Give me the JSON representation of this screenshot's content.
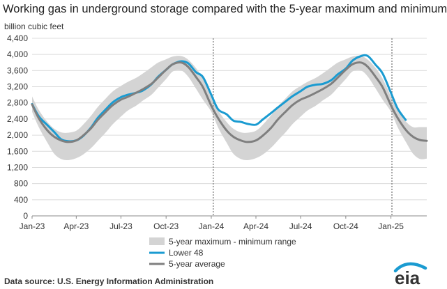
{
  "chart_data": {
    "type": "area",
    "title": "Working gas in underground  storage compared with the 5-year maximum and minimum",
    "ylabel": "billion cubic feet",
    "xlabel": "",
    "ylim": [
      0,
      4400
    ],
    "yticks": [
      0,
      400,
      800,
      1200,
      1600,
      2000,
      2400,
      2800,
      3200,
      3600,
      4000,
      4400
    ],
    "xlim": [
      "2023-01-01",
      "2025-03-15"
    ],
    "xticks": [
      {
        "date": "2023-01-01",
        "label": "Jan-23"
      },
      {
        "date": "2023-04-01",
        "label": "Apr-23"
      },
      {
        "date": "2023-07-01",
        "label": "Jul-23"
      },
      {
        "date": "2023-10-01",
        "label": "Oct-23"
      },
      {
        "date": "2024-01-01",
        "label": "Jan-24"
      },
      {
        "date": "2024-04-01",
        "label": "Apr-24"
      },
      {
        "date": "2024-07-01",
        "label": "Jul-24"
      },
      {
        "date": "2024-10-01",
        "label": "Oct-24"
      },
      {
        "date": "2025-01-01",
        "label": "Jan-25"
      }
    ],
    "grid": true,
    "legend_position": "bottom-center",
    "vlines": [
      "2024-01-05",
      "2025-01-03"
    ],
    "series": [
      {
        "name": "5-year maximum - minimum range",
        "kind": "band",
        "color": "#d4d4d4",
        "points": [
          [
            "2023-01-01",
            2960,
            2580
          ],
          [
            "2023-01-15",
            2620,
            2190
          ],
          [
            "2023-02-01",
            2330,
            1820
          ],
          [
            "2023-02-15",
            2160,
            1540
          ],
          [
            "2023-03-01",
            2070,
            1410
          ],
          [
            "2023-03-15",
            2060,
            1380
          ],
          [
            "2023-04-01",
            2110,
            1430
          ],
          [
            "2023-04-15",
            2260,
            1520
          ],
          [
            "2023-05-01",
            2480,
            1680
          ],
          [
            "2023-05-15",
            2700,
            1860
          ],
          [
            "2023-06-01",
            2920,
            2080
          ],
          [
            "2023-06-15",
            3090,
            2280
          ],
          [
            "2023-07-01",
            3220,
            2460
          ],
          [
            "2023-07-15",
            3320,
            2610
          ],
          [
            "2023-08-01",
            3420,
            2730
          ],
          [
            "2023-08-15",
            3530,
            2860
          ],
          [
            "2023-09-01",
            3680,
            3000
          ],
          [
            "2023-09-15",
            3800,
            3180
          ],
          [
            "2023-10-01",
            3880,
            3390
          ],
          [
            "2023-10-15",
            3950,
            3580
          ],
          [
            "2023-11-01",
            3960,
            3600
          ],
          [
            "2023-11-15",
            3870,
            3450
          ],
          [
            "2023-12-01",
            3660,
            3150
          ],
          [
            "2023-12-15",
            3400,
            2880
          ],
          [
            "2024-01-01",
            2960,
            2580
          ],
          [
            "2024-01-15",
            2620,
            2190
          ],
          [
            "2024-02-01",
            2330,
            1820
          ],
          [
            "2024-02-15",
            2160,
            1540
          ],
          [
            "2024-03-01",
            2070,
            1410
          ],
          [
            "2024-03-15",
            2060,
            1380
          ],
          [
            "2024-04-01",
            2110,
            1430
          ],
          [
            "2024-04-15",
            2260,
            1520
          ],
          [
            "2024-05-01",
            2480,
            1680
          ],
          [
            "2024-05-15",
            2700,
            1860
          ],
          [
            "2024-06-01",
            2920,
            2080
          ],
          [
            "2024-06-15",
            3090,
            2280
          ],
          [
            "2024-07-01",
            3220,
            2460
          ],
          [
            "2024-07-15",
            3320,
            2610
          ],
          [
            "2024-08-01",
            3420,
            2730
          ],
          [
            "2024-08-15",
            3530,
            2860
          ],
          [
            "2024-09-01",
            3680,
            3000
          ],
          [
            "2024-09-15",
            3800,
            3180
          ],
          [
            "2024-10-01",
            3880,
            3390
          ],
          [
            "2024-10-15",
            3950,
            3580
          ],
          [
            "2024-11-01",
            3960,
            3600
          ],
          [
            "2024-11-15",
            3870,
            3450
          ],
          [
            "2024-12-01",
            3660,
            3150
          ],
          [
            "2024-12-15",
            3400,
            2880
          ],
          [
            "2025-01-01",
            2960,
            2580
          ],
          [
            "2025-01-15",
            2620,
            2190
          ],
          [
            "2025-02-01",
            2330,
            1820
          ],
          [
            "2025-02-15",
            2200,
            1540
          ],
          [
            "2025-03-01",
            2200,
            1410
          ],
          [
            "2025-03-15",
            2200,
            1420
          ]
        ]
      },
      {
        "name": "Lower 48",
        "kind": "line",
        "color": "#1a9bd1",
        "points": [
          [
            "2023-01-01",
            2770
          ],
          [
            "2023-01-15",
            2460
          ],
          [
            "2023-02-01",
            2250
          ],
          [
            "2023-02-15",
            2080
          ],
          [
            "2023-03-01",
            1900
          ],
          [
            "2023-03-15",
            1850
          ],
          [
            "2023-04-01",
            1870
          ],
          [
            "2023-04-15",
            1980
          ],
          [
            "2023-05-01",
            2190
          ],
          [
            "2023-05-15",
            2430
          ],
          [
            "2023-06-01",
            2650
          ],
          [
            "2023-06-15",
            2820
          ],
          [
            "2023-07-01",
            2940
          ],
          [
            "2023-07-15",
            3000
          ],
          [
            "2023-08-01",
            3050
          ],
          [
            "2023-08-15",
            3110
          ],
          [
            "2023-09-01",
            3260
          ],
          [
            "2023-09-15",
            3450
          ],
          [
            "2023-10-01",
            3620
          ],
          [
            "2023-10-15",
            3760
          ],
          [
            "2023-11-01",
            3830
          ],
          [
            "2023-11-15",
            3780
          ],
          [
            "2023-12-01",
            3560
          ],
          [
            "2023-12-15",
            3440
          ],
          [
            "2024-01-01",
            3000
          ],
          [
            "2024-01-15",
            2640
          ],
          [
            "2024-02-01",
            2520
          ],
          [
            "2024-02-15",
            2360
          ],
          [
            "2024-03-01",
            2330
          ],
          [
            "2024-03-15",
            2280
          ],
          [
            "2024-04-01",
            2260
          ],
          [
            "2024-04-15",
            2390
          ],
          [
            "2024-05-01",
            2540
          ],
          [
            "2024-05-15",
            2680
          ],
          [
            "2024-06-01",
            2840
          ],
          [
            "2024-06-15",
            2970
          ],
          [
            "2024-07-01",
            3090
          ],
          [
            "2024-07-15",
            3200
          ],
          [
            "2024-08-01",
            3250
          ],
          [
            "2024-08-15",
            3270
          ],
          [
            "2024-09-01",
            3360
          ],
          [
            "2024-09-15",
            3510
          ],
          [
            "2024-10-01",
            3650
          ],
          [
            "2024-10-15",
            3850
          ],
          [
            "2024-11-01",
            3960
          ],
          [
            "2024-11-15",
            3960
          ],
          [
            "2024-12-01",
            3740
          ],
          [
            "2024-12-15",
            3530
          ],
          [
            "2025-01-01",
            3050
          ],
          [
            "2025-01-15",
            2650
          ],
          [
            "2025-01-31",
            2380
          ]
        ]
      },
      {
        "name": "5-year average",
        "kind": "line",
        "color": "#7f7f7f",
        "points": [
          [
            "2023-01-01",
            2760
          ],
          [
            "2023-01-15",
            2410
          ],
          [
            "2023-02-01",
            2120
          ],
          [
            "2023-02-15",
            1960
          ],
          [
            "2023-03-01",
            1870
          ],
          [
            "2023-03-15",
            1830
          ],
          [
            "2023-04-01",
            1870
          ],
          [
            "2023-04-15",
            1990
          ],
          [
            "2023-05-01",
            2170
          ],
          [
            "2023-05-15",
            2380
          ],
          [
            "2023-06-01",
            2590
          ],
          [
            "2023-06-15",
            2750
          ],
          [
            "2023-07-01",
            2880
          ],
          [
            "2023-07-15",
            2950
          ],
          [
            "2023-08-01",
            3050
          ],
          [
            "2023-08-15",
            3140
          ],
          [
            "2023-09-01",
            3270
          ],
          [
            "2023-09-15",
            3430
          ],
          [
            "2023-10-01",
            3620
          ],
          [
            "2023-10-15",
            3760
          ],
          [
            "2023-11-01",
            3800
          ],
          [
            "2023-11-15",
            3690
          ],
          [
            "2023-12-01",
            3440
          ],
          [
            "2023-12-15",
            3190
          ],
          [
            "2024-01-01",
            2730
          ],
          [
            "2024-01-15",
            2420
          ],
          [
            "2024-02-01",
            2120
          ],
          [
            "2024-02-15",
            1960
          ],
          [
            "2024-03-01",
            1870
          ],
          [
            "2024-03-15",
            1830
          ],
          [
            "2024-04-01",
            1870
          ],
          [
            "2024-04-15",
            1990
          ],
          [
            "2024-05-01",
            2170
          ],
          [
            "2024-05-15",
            2380
          ],
          [
            "2024-06-01",
            2590
          ],
          [
            "2024-06-15",
            2750
          ],
          [
            "2024-07-01",
            2880
          ],
          [
            "2024-07-15",
            2950
          ],
          [
            "2024-08-01",
            3050
          ],
          [
            "2024-08-15",
            3140
          ],
          [
            "2024-09-01",
            3270
          ],
          [
            "2024-09-15",
            3430
          ],
          [
            "2024-10-01",
            3620
          ],
          [
            "2024-10-15",
            3760
          ],
          [
            "2024-11-01",
            3800
          ],
          [
            "2024-11-15",
            3690
          ],
          [
            "2024-12-01",
            3440
          ],
          [
            "2024-12-15",
            3190
          ],
          [
            "2025-01-01",
            2740
          ],
          [
            "2025-01-15",
            2420
          ],
          [
            "2025-02-01",
            2120
          ],
          [
            "2025-02-15",
            1960
          ],
          [
            "2025-03-01",
            1880
          ],
          [
            "2025-03-15",
            1860
          ]
        ]
      }
    ]
  },
  "footer": {
    "source": "Data source:  U.S. Energy Information Administration"
  },
  "logo": {
    "text": "eia",
    "arc_color": "#1a9bd1"
  }
}
